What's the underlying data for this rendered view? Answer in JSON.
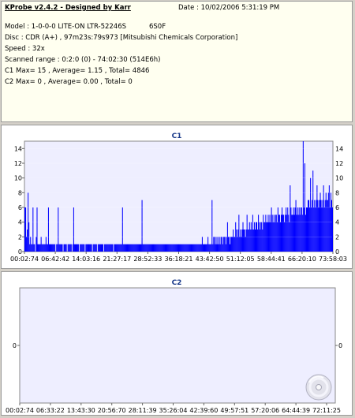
{
  "header": {
    "title": "KProbe v2.4.2 - Designed by Karr",
    "date": "Date : 10/02/2006 5:31:19 PM",
    "model": "Model : 1-0-0-0 LITE-ON LTR-52246S",
    "firmware": "6S0F",
    "disc": "Disc : CDR (A+) , 97m23s:79s973 [Mitsubishi Chemicals Corporation]",
    "speed": "Speed : 32x",
    "range": "Scanned range : 0:2:0 (0) - 74:02:30 (514E6h)",
    "c1": "C1 Max= 15 , Average= 1.15 , Total= 4846",
    "c2": "C2 Max= 0 , Average= 0.00 , Total= 0"
  },
  "chart_data": [
    {
      "type": "bar",
      "title": "C1",
      "ylim": [
        0,
        15
      ],
      "yticks": [
        0,
        2,
        4,
        6,
        8,
        10,
        12,
        14
      ],
      "xticks": [
        "00:02:74",
        "06:42:42",
        "14:03:16",
        "21:27:17",
        "28:52:33",
        "36:18:21",
        "43:42:50",
        "51:12:05",
        "58:44:41",
        "66:20:10",
        "73:58:03"
      ],
      "grid": true,
      "color": "#0000ff",
      "series": [
        {
          "values": [
            6,
            6,
            2,
            3,
            8,
            4,
            1,
            2,
            1,
            1,
            6,
            1,
            1,
            0,
            2,
            6,
            1,
            1,
            1,
            1,
            2,
            1,
            1,
            1,
            1,
            1,
            2,
            1,
            1,
            6,
            1,
            1,
            1,
            1,
            1,
            1,
            1,
            1,
            0,
            1,
            1,
            6,
            1,
            1,
            1,
            1,
            1,
            0,
            1,
            1,
            1,
            1,
            0,
            1,
            1,
            1,
            1,
            1,
            0,
            1,
            6,
            1,
            1,
            1,
            1,
            1,
            1,
            0,
            1,
            1,
            1,
            1,
            1,
            1,
            0,
            1,
            1,
            1,
            1,
            1,
            1,
            1,
            1,
            0,
            1,
            1,
            1,
            1,
            1,
            0,
            1,
            1,
            1,
            1,
            1,
            1,
            1,
            0,
            1,
            1,
            1,
            1,
            1,
            1,
            1,
            1,
            1,
            1,
            1,
            0,
            1,
            1,
            1,
            1,
            1,
            1,
            1,
            1,
            1,
            1,
            6,
            1,
            1,
            1,
            1,
            1,
            1,
            1,
            1,
            1,
            1,
            1,
            1,
            1,
            1,
            1,
            1,
            1,
            1,
            1,
            1,
            1,
            1,
            1,
            7,
            1,
            1,
            1,
            1,
            1,
            1,
            1,
            1,
            1,
            1,
            1,
            1,
            1,
            1,
            1,
            1,
            1,
            1,
            1,
            1,
            1,
            1,
            1,
            1,
            1,
            1,
            1,
            1,
            1,
            1,
            1,
            1,
            1,
            1,
            1,
            1,
            1,
            1,
            1,
            1,
            1,
            1,
            1,
            1,
            1,
            1,
            1,
            1,
            1,
            1,
            1,
            1,
            1,
            1,
            1,
            1,
            1,
            1,
            1,
            1,
            1,
            1,
            1,
            1,
            1,
            1,
            1,
            1,
            1,
            1,
            1,
            1,
            1,
            2,
            1,
            1,
            1,
            1,
            1,
            1,
            2,
            1,
            1,
            1,
            1,
            7,
            1,
            2,
            2,
            1,
            2,
            1,
            2,
            1,
            2,
            1,
            2,
            2,
            1,
            2,
            2,
            2,
            1,
            2,
            4,
            2,
            2,
            1,
            2,
            2,
            2,
            3,
            2,
            2,
            4,
            3,
            2,
            3,
            5,
            2,
            3,
            2,
            3,
            4,
            3,
            3,
            2,
            3,
            5,
            3,
            3,
            4,
            3,
            4,
            3,
            5,
            3,
            4,
            3,
            4,
            4,
            3,
            5,
            4,
            3,
            4,
            4,
            3,
            5,
            4,
            4,
            5,
            4,
            4,
            5,
            4,
            5,
            4,
            6,
            5,
            4,
            5,
            4,
            5,
            5,
            4,
            6,
            5,
            5,
            4,
            5,
            6,
            5,
            5,
            4,
            5,
            6,
            5,
            6,
            5,
            4,
            9,
            6,
            5,
            5,
            6,
            5,
            6,
            7,
            5,
            6,
            5,
            6,
            5,
            6,
            6,
            5,
            15,
            6,
            12,
            5,
            6,
            6,
            7,
            7,
            6,
            10,
            6,
            7,
            11,
            6,
            7,
            6,
            7,
            9,
            7,
            6,
            7,
            8,
            7,
            6,
            7,
            9,
            6,
            7,
            8,
            7,
            7,
            8,
            9,
            6,
            8,
            7,
            6
          ]
        }
      ]
    },
    {
      "type": "bar",
      "title": "C2",
      "ylim": [
        -1,
        1
      ],
      "yticks": [
        0
      ],
      "xticks": [
        "00:02:74",
        "06:33:22",
        "13:43:30",
        "20:56:70",
        "28:11:39",
        "35:26:04",
        "42:39:60",
        "49:57:51",
        "57:20:06",
        "64:44:39",
        "72:11:25"
      ],
      "grid": false,
      "series": [
        {
          "values": []
        }
      ]
    }
  ]
}
